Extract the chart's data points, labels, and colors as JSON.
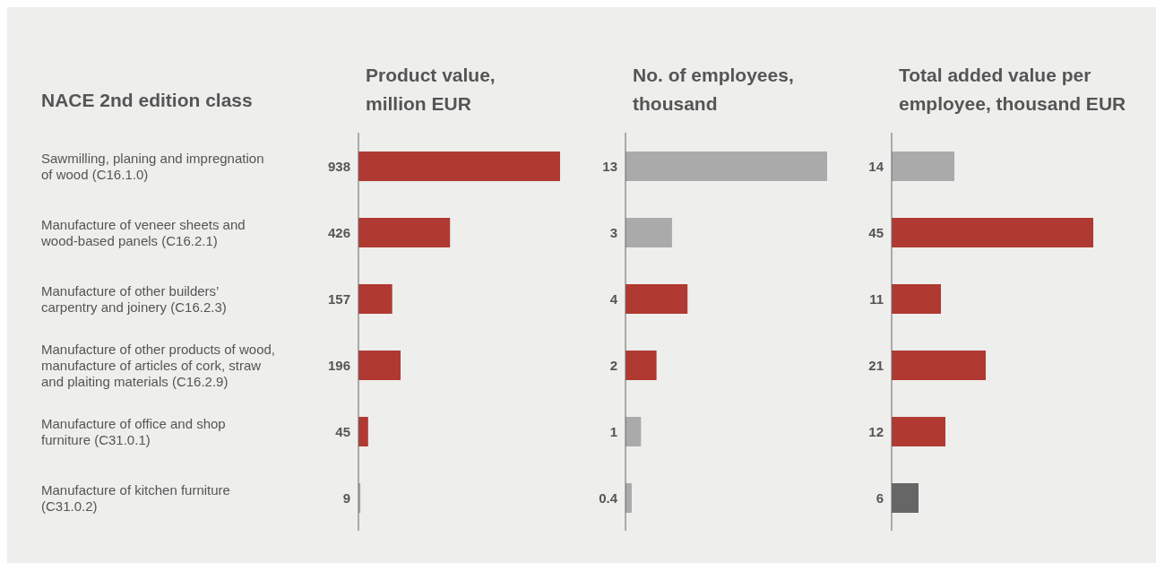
{
  "chart_data": [
    {
      "type": "bar",
      "orientation": "horizontal",
      "title": "Product value, million EUR",
      "ylabel": "NACE 2nd edition class",
      "categories": [
        "Sawmilling, planing and impregnation of wood (C16.1.0)",
        "Manufacture of veneer sheets and wood-based panels (C16.2.1)",
        "Manufacture of other builders’ carpentry and joinery (C16.2.3)",
        "Manufacture of other products of wood, manufacture of articles of cork, straw and plaiting materials (C16.2.9)",
        "Manufacture of office and shop furniture (C31.0.1)",
        "Manufacture of kitchen furniture (C31.0.2)"
      ],
      "values": [
        938,
        426,
        157,
        196,
        45,
        9
      ],
      "colors": [
        "#b03a32",
        "#b03a32",
        "#b03a32",
        "#b03a32",
        "#b03a32",
        "#aaaaaa"
      ],
      "data_labels": true,
      "tick_labels": "y"
    },
    {
      "type": "bar",
      "orientation": "horizontal",
      "title": "No. of employees, thousand",
      "categories": [
        null,
        null,
        null,
        null,
        null,
        null
      ],
      "values": [
        13,
        3,
        4,
        2,
        1,
        0.4
      ],
      "colors": [
        "#aaaaaa",
        "#aaaaaa",
        "#b03a32",
        "#b03a32",
        "#aaaaaa",
        "#aaaaaa"
      ],
      "data_labels": true,
      "tick_labels": false
    },
    {
      "type": "bar",
      "orientation": "horizontal",
      "title": "Total added value per employee, thousand EUR",
      "categories": [
        null,
        null,
        null,
        null,
        null,
        null
      ],
      "values": [
        14,
        45,
        11,
        21,
        12,
        6
      ],
      "colors": [
        "#aaaaaa",
        "#b03a32",
        "#b03a32",
        "#b03a32",
        "#b03a32",
        "#666666"
      ],
      "data_labels": true,
      "tick_labels": false
    }
  ]
}
